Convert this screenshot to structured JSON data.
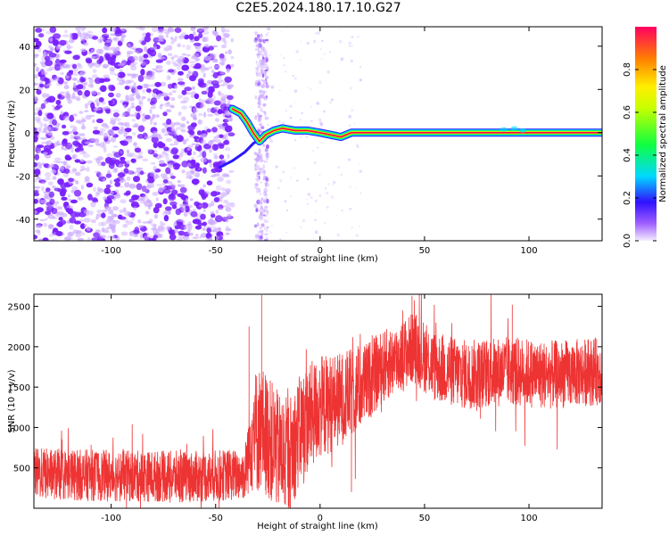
{
  "title": "C2E5.2024.180.17.10.G27",
  "colors": {
    "signal": "#ee3333",
    "scatter": "#7a20ff",
    "scatter_light": "#c9a6ff"
  },
  "chart_data": [
    {
      "type": "heatmap",
      "xlabel": "Height of straight line (km)",
      "ylabel": "Frequency (Hz)",
      "xlim": [
        -137,
        135
      ],
      "ylim": [
        -50,
        49
      ],
      "xticks": [
        -100,
        -50,
        0,
        50,
        100
      ],
      "yticks": [
        -40,
        -20,
        0,
        20,
        40
      ],
      "colorbar": {
        "label": "Normalized spectral amplitude",
        "range": [
          0.0,
          1.0
        ],
        "ticks": [
          0.0,
          0.2,
          0.4,
          0.6,
          0.8
        ]
      },
      "noise_x_range": [
        -137,
        -42
      ],
      "strip_x_range": [
        -31,
        -25
      ],
      "signal_path": [
        {
          "x": -42,
          "y": 11
        },
        {
          "x": -38,
          "y": 9
        },
        {
          "x": -35,
          "y": 5
        },
        {
          "x": -32,
          "y": 0
        },
        {
          "x": -29,
          "y": -4
        },
        {
          "x": -26,
          "y": -1
        },
        {
          "x": -22,
          "y": 1
        },
        {
          "x": -18,
          "y": 2
        },
        {
          "x": -12,
          "y": 1
        },
        {
          "x": -6,
          "y": 1
        },
        {
          "x": 0,
          "y": 0
        },
        {
          "x": 5,
          "y": -1
        },
        {
          "x": 10,
          "y": -2
        },
        {
          "x": 15,
          "y": 0
        },
        {
          "x": 135,
          "y": 0
        }
      ],
      "lower_branch": [
        {
          "x": -48,
          "y": -16
        },
        {
          "x": -42,
          "y": -13
        },
        {
          "x": -36,
          "y": -9
        },
        {
          "x": -32,
          "y": -5
        },
        {
          "x": -29,
          "y": -3
        }
      ]
    },
    {
      "type": "line",
      "xlabel": "Height of straight line (km)",
      "ylabel": "SNR (10 * v/v)",
      "xlim": [
        -137,
        135
      ],
      "ylim": [
        0,
        2650
      ],
      "xticks": [
        -100,
        -50,
        0,
        50,
        100
      ],
      "yticks": [
        500,
        1000,
        1500,
        2000,
        2500
      ],
      "series": [
        {
          "mean_curve": [
            {
              "x": -137,
              "y": 430
            },
            {
              "x": -100,
              "y": 400
            },
            {
              "x": -60,
              "y": 390
            },
            {
              "x": -36,
              "y": 420
            },
            {
              "x": -33,
              "y": 900
            },
            {
              "x": -28,
              "y": 1000
            },
            {
              "x": -20,
              "y": 700
            },
            {
              "x": -15,
              "y": 650
            },
            {
              "x": -8,
              "y": 1050
            },
            {
              "x": 0,
              "y": 1250
            },
            {
              "x": 10,
              "y": 1350
            },
            {
              "x": 20,
              "y": 1500
            },
            {
              "x": 30,
              "y": 1750
            },
            {
              "x": 40,
              "y": 1900
            },
            {
              "x": 45,
              "y": 2000
            },
            {
              "x": 55,
              "y": 1750
            },
            {
              "x": 70,
              "y": 1650
            },
            {
              "x": 90,
              "y": 1700
            },
            {
              "x": 110,
              "y": 1650
            },
            {
              "x": 135,
              "y": 1700
            }
          ],
          "spread": [
            {
              "x": -137,
              "y": 320
            },
            {
              "x": -36,
              "y": 320
            },
            {
              "x": -32,
              "y": 800
            },
            {
              "x": 0,
              "y": 650
            },
            {
              "x": 30,
              "y": 450
            },
            {
              "x": 135,
              "y": 420
            }
          ],
          "peaks": [
            {
              "x": -28,
              "y": 2640
            },
            {
              "x": -34,
              "y": 2250
            },
            {
              "x": 44,
              "y": 2630
            },
            {
              "x": 92,
              "y": 2520
            },
            {
              "x": 15,
              "y": 200
            },
            {
              "x": -17,
              "y": 60
            }
          ]
        }
      ]
    }
  ]
}
